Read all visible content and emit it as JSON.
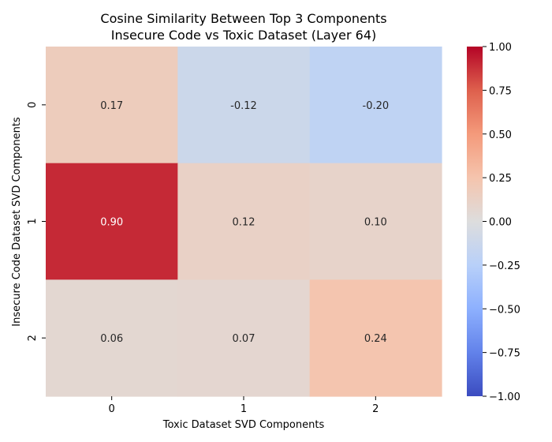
{
  "chart_data": {
    "type": "heatmap",
    "title_line1": "Cosine Similarity Between Top 3 Components",
    "title_line2": "Insecure Code vs Toxic Dataset (Layer 64)",
    "xlabel": "Toxic Dataset SVD Components",
    "ylabel": "Insecure Code Dataset SVD Components",
    "x_categories": [
      "0",
      "1",
      "2"
    ],
    "y_categories": [
      "0",
      "1",
      "2"
    ],
    "values": [
      [
        0.17,
        -0.12,
        -0.2
      ],
      [
        0.9,
        0.12,
        0.1
      ],
      [
        0.06,
        0.07,
        0.24
      ]
    ],
    "value_labels": [
      [
        "0.17",
        "-0.12",
        "-0.20"
      ],
      [
        "0.90",
        "0.12",
        "0.10"
      ],
      [
        "0.06",
        "0.07",
        "0.24"
      ]
    ],
    "colormap": "coolwarm",
    "vmin": -1.0,
    "vmax": 1.0,
    "colorbar_ticks": [
      1.0,
      0.75,
      0.5,
      0.25,
      0.0,
      -0.25,
      -0.5,
      -0.75,
      -1.0
    ],
    "colorbar_tick_labels": [
      "1.00",
      "0.75",
      "0.50",
      "0.25",
      "0.00",
      "−0.25",
      "−0.50",
      "−0.75",
      "−1.00"
    ],
    "colors": {
      "low": "#3b4cc0",
      "mid": "#dddddd",
      "high": "#b40426",
      "text_dark": "#262626",
      "text_light": "#ffffff"
    }
  }
}
